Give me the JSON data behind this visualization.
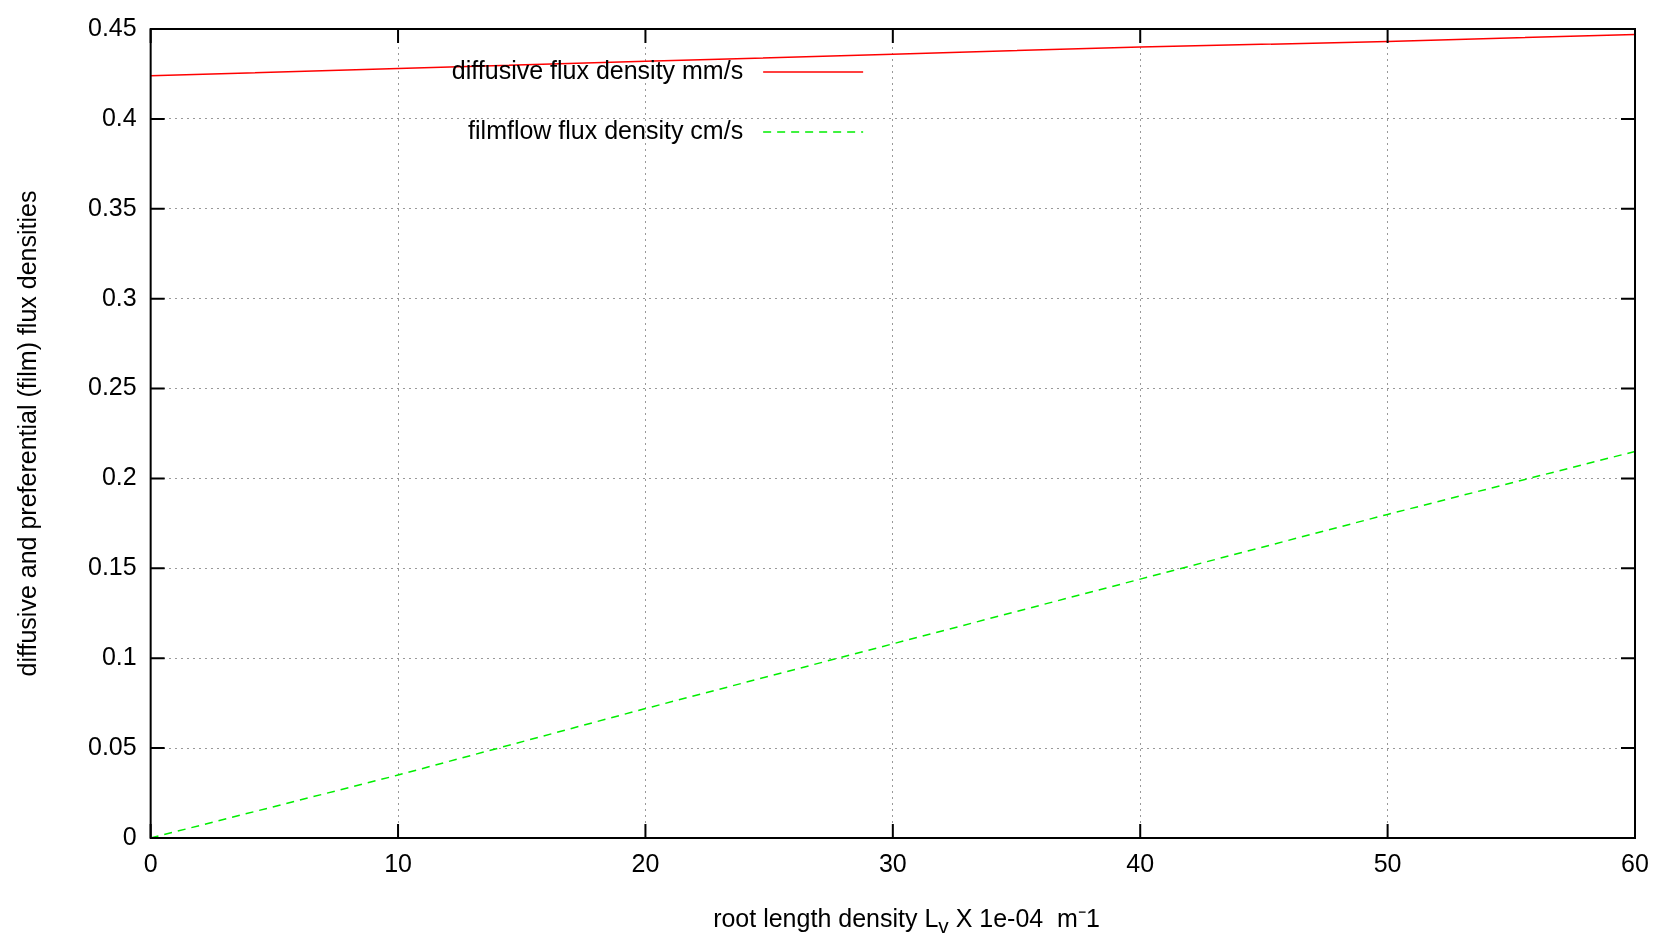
{
  "chart_data": {
    "type": "line",
    "xlabel": "root length density L$_{v}$ X 1e-04  m⁻1",
    "ylabel": "diffusive and preferential (film) flux densities",
    "x": [
      0,
      10,
      20,
      30,
      40,
      50,
      60
    ],
    "series": [
      {
        "name": "diffusive flux density mm/s",
        "color": "#ff0000",
        "values": [
          0.424,
          0.428,
          0.432,
          0.436,
          0.44,
          0.443,
          0.447
        ],
        "line_style": "solid"
      },
      {
        "name": "filmflow flux density cm/s",
        "color": "#00ee00",
        "values": [
          0,
          0.035,
          0.072,
          0.108,
          0.144,
          0.18,
          0.215
        ],
        "line_style": "dashed"
      }
    ],
    "xlim": [
      0,
      60
    ],
    "xticks": [
      0,
      10,
      20,
      30,
      40,
      50,
      60
    ],
    "ylim": [
      0,
      0.45
    ],
    "yticks": [
      0,
      0.05,
      0.1,
      0.15,
      0.2,
      0.25,
      0.3,
      0.35,
      0.4,
      0.45
    ],
    "grid": true,
    "legend": "top",
    "marker": "none"
  }
}
